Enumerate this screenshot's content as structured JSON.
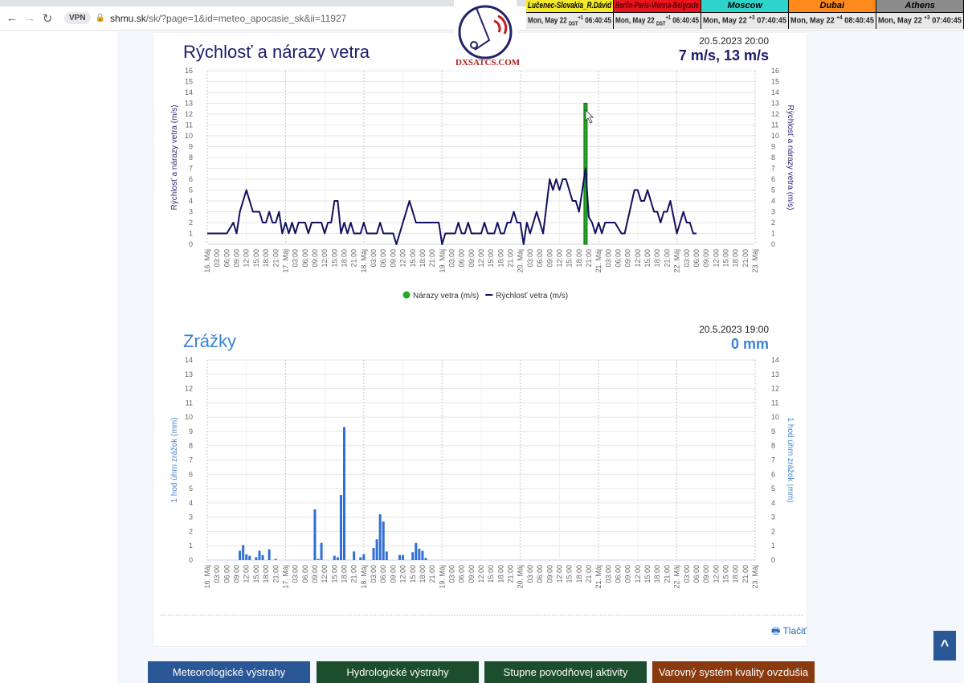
{
  "browser": {
    "url_host": "shmu.sk",
    "url_path": "/sk/?page=1&id=meteo_apocasie_sk&ii=11927",
    "vpn_label": "VPN"
  },
  "logo": {
    "text": "DXSATCS.COM"
  },
  "clock": [
    {
      "name": "Lučenec-Slovakia_R.Dávid",
      "date": "Mon, May 22",
      "offset": "+1",
      "dst": "DST",
      "time": "06:40:45",
      "color": "#f4ea2a",
      "text_color": "#000"
    },
    {
      "name": "Berlin-Paris-Vienna-Belgrade",
      "date": "Mon, May 22",
      "offset": "+1",
      "dst": "DST",
      "time": "06:40:45",
      "color": "#e8141e",
      "text_color": "#5a0000"
    },
    {
      "name": "Moscow",
      "date": "Mon, May 22",
      "offset": "+3",
      "dst": "",
      "time": "07:40:45",
      "color": "#2ed3c9",
      "text_color": "#000"
    },
    {
      "name": "Dubai",
      "date": "Mon, May 22",
      "offset": "+4",
      "dst": "",
      "time": "08:40:45",
      "color": "#ff8a1c",
      "text_color": "#000"
    },
    {
      "name": "Athens",
      "date": "Mon, May 22",
      "offset": "+3",
      "dst": "",
      "time": "07:40:45",
      "color": "#8c8c8c",
      "text_color": "#000"
    }
  ],
  "wind": {
    "title": "Rýchlosť a nárazy vetra",
    "stamp": "20.5.2023 20:00",
    "value": "7 m/s, 13 m/s"
  },
  "precip": {
    "title": "Zrážky",
    "stamp": "20.5.2023 19:00",
    "value": "0 mm"
  },
  "x_ticks": [
    "16. Máj",
    "03:00",
    "06:00",
    "09:00",
    "12:00",
    "15:00",
    "18:00",
    "21:00",
    "17. Máj",
    "03:00",
    "06:00",
    "09:00",
    "12:00",
    "15:00",
    "18:00",
    "21:00",
    "18. Máj",
    "03:00",
    "06:00",
    "09:00",
    "12:00",
    "15:00",
    "18:00",
    "21:00",
    "19. Máj",
    "03:00",
    "06:00",
    "09:00",
    "12:00",
    "15:00",
    "18:00",
    "21:00",
    "20. Máj",
    "03:00",
    "06:00",
    "09:00",
    "12:00",
    "15:00",
    "18:00",
    "21:00",
    "21. Máj",
    "03:00",
    "06:00",
    "09:00",
    "12:00",
    "15:00",
    "18:00",
    "21:00",
    "22. Máj",
    "03:00",
    "06:00",
    "09:00",
    "12:00",
    "15:00",
    "18:00",
    "21:00",
    "23. Máj"
  ],
  "chart_data": [
    {
      "type": "line",
      "ylabel": "Rýchlosť a nárazy vetra (m/s)",
      "ylim": [
        0,
        16
      ],
      "xlim": [
        "2023-05-16T00:00",
        "2023-05-23T00:00"
      ],
      "grid": true,
      "legend": "bottom",
      "series": [
        {
          "name": "Nárazy vetra (m/s)",
          "type": "bar",
          "color": "#22aa22",
          "points": [
            [
              "2023-05-20T20:00",
              13
            ]
          ]
        },
        {
          "name": "Rýchlosť vetra (m/s)",
          "type": "line",
          "color": "#10105e",
          "points": [
            [
              "2023-05-16T00:00",
              1
            ],
            [
              "2023-05-16T06:00",
              1
            ],
            [
              "2023-05-16T08:00",
              2
            ],
            [
              "2023-05-16T09:00",
              1
            ],
            [
              "2023-05-16T10:00",
              3
            ],
            [
              "2023-05-16T11:00",
              4
            ],
            [
              "2023-05-16T12:00",
              5
            ],
            [
              "2023-05-16T14:00",
              3
            ],
            [
              "2023-05-16T16:00",
              3
            ],
            [
              "2023-05-16T17:00",
              2
            ],
            [
              "2023-05-16T18:00",
              2
            ],
            [
              "2023-05-16T19:00",
              3
            ],
            [
              "2023-05-16T20:00",
              2
            ],
            [
              "2023-05-16T21:00",
              2
            ],
            [
              "2023-05-16T22:00",
              3
            ],
            [
              "2023-05-16T23:00",
              1
            ],
            [
              "2023-05-17T00:00",
              2
            ],
            [
              "2023-05-17T01:00",
              1
            ],
            [
              "2023-05-17T02:00",
              2
            ],
            [
              "2023-05-17T03:00",
              1
            ],
            [
              "2023-05-17T04:00",
              2
            ],
            [
              "2023-05-17T06:00",
              2
            ],
            [
              "2023-05-17T07:00",
              1
            ],
            [
              "2023-05-17T08:00",
              2
            ],
            [
              "2023-05-17T11:00",
              2
            ],
            [
              "2023-05-17T12:00",
              1
            ],
            [
              "2023-05-17T13:00",
              2
            ],
            [
              "2023-05-17T14:00",
              2
            ],
            [
              "2023-05-17T15:00",
              4
            ],
            [
              "2023-05-17T16:00",
              4
            ],
            [
              "2023-05-17T17:00",
              1
            ],
            [
              "2023-05-17T18:00",
              2
            ],
            [
              "2023-05-17T19:00",
              1
            ],
            [
              "2023-05-17T20:00",
              2
            ],
            [
              "2023-05-17T21:00",
              1
            ],
            [
              "2023-05-17T23:00",
              1
            ],
            [
              "2023-05-18T00:00",
              2
            ],
            [
              "2023-05-18T01:00",
              1
            ],
            [
              "2023-05-18T04:00",
              1
            ],
            [
              "2023-05-18T05:00",
              2
            ],
            [
              "2023-05-18T06:00",
              1
            ],
            [
              "2023-05-18T09:00",
              1
            ],
            [
              "2023-05-18T10:00",
              0
            ],
            [
              "2023-05-18T14:00",
              4
            ],
            [
              "2023-05-18T16:00",
              2
            ],
            [
              "2023-05-18T23:00",
              2
            ],
            [
              "2023-05-19T00:00",
              0
            ],
            [
              "2023-05-19T01:00",
              1
            ],
            [
              "2023-05-19T04:00",
              1
            ],
            [
              "2023-05-19T05:00",
              2
            ],
            [
              "2023-05-19T06:00",
              1
            ],
            [
              "2023-05-19T07:00",
              1
            ],
            [
              "2023-05-19T08:00",
              2
            ],
            [
              "2023-05-19T09:00",
              1
            ],
            [
              "2023-05-19T12:00",
              1
            ],
            [
              "2023-05-19T13:00",
              2
            ],
            [
              "2023-05-19T14:00",
              1
            ],
            [
              "2023-05-19T16:00",
              1
            ],
            [
              "2023-05-19T17:00",
              2
            ],
            [
              "2023-05-19T18:00",
              1
            ],
            [
              "2023-05-19T19:00",
              1
            ],
            [
              "2023-05-19T20:00",
              2
            ],
            [
              "2023-05-19T21:00",
              2
            ],
            [
              "2023-05-19T22:00",
              3
            ],
            [
              "2023-05-19T23:00",
              2
            ],
            [
              "2023-05-20T00:00",
              2
            ],
            [
              "2023-05-20T01:00",
              0
            ],
            [
              "2023-05-20T02:00",
              2
            ],
            [
              "2023-05-20T03:00",
              1
            ],
            [
              "2023-05-20T05:00",
              3
            ],
            [
              "2023-05-20T07:00",
              1
            ],
            [
              "2023-05-20T09:00",
              6
            ],
            [
              "2023-05-20T10:00",
              5
            ],
            [
              "2023-05-20T11:00",
              6
            ],
            [
              "2023-05-20T12:00",
              5
            ],
            [
              "2023-05-20T13:00",
              6
            ],
            [
              "2023-05-20T14:00",
              6
            ],
            [
              "2023-05-20T16:00",
              4
            ],
            [
              "2023-05-20T17:00",
              4
            ],
            [
              "2023-05-20T18:00",
              3
            ],
            [
              "2023-05-20T20:00",
              7
            ],
            [
              "2023-05-20T21:00",
              2.5
            ],
            [
              "2023-05-20T22:00",
              2
            ],
            [
              "2023-05-20T23:00",
              1
            ],
            [
              "2023-05-21T00:00",
              2
            ],
            [
              "2023-05-21T01:00",
              1
            ],
            [
              "2023-05-21T02:00",
              2
            ],
            [
              "2023-05-21T05:00",
              2
            ],
            [
              "2023-05-21T07:00",
              1
            ],
            [
              "2023-05-21T08:00",
              1
            ],
            [
              "2023-05-21T11:00",
              5
            ],
            [
              "2023-05-21T12:00",
              5
            ],
            [
              "2023-05-21T13:00",
              4
            ],
            [
              "2023-05-21T14:00",
              4
            ],
            [
              "2023-05-21T15:00",
              5
            ],
            [
              "2023-05-21T17:00",
              3
            ],
            [
              "2023-05-21T18:00",
              3
            ],
            [
              "2023-05-21T19:00",
              2
            ],
            [
              "2023-05-21T20:00",
              3
            ],
            [
              "2023-05-21T21:00",
              3
            ],
            [
              "2023-05-21T22:00",
              4
            ],
            [
              "2023-05-22T00:00",
              1
            ],
            [
              "2023-05-22T02:00",
              3
            ],
            [
              "2023-05-22T03:00",
              2
            ],
            [
              "2023-05-22T04:00",
              2
            ],
            [
              "2023-05-22T05:00",
              1
            ],
            [
              "2023-05-22T06:00",
              1
            ]
          ]
        }
      ]
    },
    {
      "type": "bar",
      "ylabel": "1 hod úhrn zrážok (mm)",
      "ylim": [
        0,
        14
      ],
      "xlim": [
        "2023-05-16T00:00",
        "2023-05-23T00:00"
      ],
      "grid": true,
      "series": [
        {
          "color": "#2f6fd6",
          "points": [
            [
              "2023-05-16T10:00",
              0.65
            ],
            [
              "2023-05-16T11:00",
              1.05
            ],
            [
              "2023-05-16T12:00",
              0.4
            ],
            [
              "2023-05-16T13:00",
              0.3
            ],
            [
              "2023-05-16T15:00",
              0.2
            ],
            [
              "2023-05-16T16:00",
              0.65
            ],
            [
              "2023-05-16T17:00",
              0.35
            ],
            [
              "2023-05-16T19:00",
              0.75
            ],
            [
              "2023-05-16T21:00",
              0.08
            ],
            [
              "2023-05-17T09:00",
              3.55
            ],
            [
              "2023-05-17T10:00",
              0.08
            ],
            [
              "2023-05-17T11:00",
              1.2
            ],
            [
              "2023-05-17T15:00",
              0.3
            ],
            [
              "2023-05-17T16:00",
              0.2
            ],
            [
              "2023-05-17T17:00",
              4.55
            ],
            [
              "2023-05-17T18:00",
              9.3
            ],
            [
              "2023-05-17T21:00",
              0.6
            ],
            [
              "2023-05-17T23:00",
              0.2
            ],
            [
              "2023-05-18T00:00",
              0.4
            ],
            [
              "2023-05-18T03:00",
              0.85
            ],
            [
              "2023-05-18T04:00",
              1.45
            ],
            [
              "2023-05-18T05:00",
              3.2
            ],
            [
              "2023-05-18T06:00",
              2.7
            ],
            [
              "2023-05-18T07:00",
              0.6
            ],
            [
              "2023-05-18T11:00",
              0.35
            ],
            [
              "2023-05-18T12:00",
              0.35
            ],
            [
              "2023-05-18T15:00",
              0.55
            ],
            [
              "2023-05-18T16:00",
              1.2
            ],
            [
              "2023-05-18T17:00",
              0.8
            ],
            [
              "2023-05-18T18:00",
              0.65
            ],
            [
              "2023-05-18T19:00",
              0.15
            ]
          ]
        }
      ]
    }
  ],
  "footer": {
    "print_label": "Tlačiť",
    "buttons": [
      {
        "label": "Meteorologické výstrahy",
        "color": "#2a5896"
      },
      {
        "label": "Hydrologické výstrahy",
        "color": "#1c4d2c"
      },
      {
        "label": "Stupne povodňovej aktivity",
        "color": "#1c4d2c"
      },
      {
        "label": "Varovný systém kvality ovzdušia",
        "color": "#8a3a0f"
      }
    ],
    "to_top": "^"
  }
}
